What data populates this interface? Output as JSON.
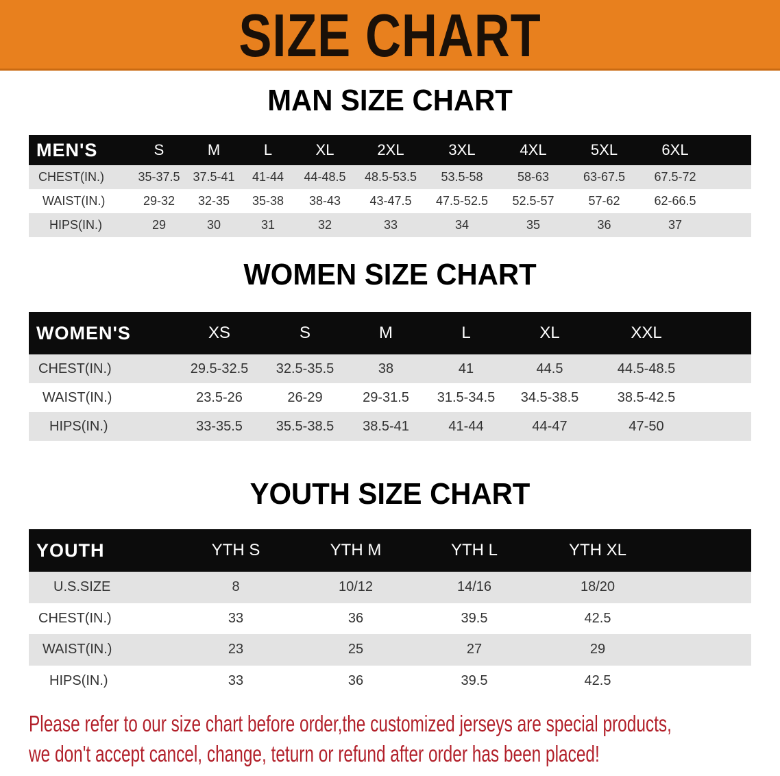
{
  "banner": {
    "title": "SIZE CHART",
    "color": "#e8801e"
  },
  "men": {
    "title": "MAN SIZE CHART",
    "header": [
      "MEN'S",
      "S",
      "M",
      "L",
      "XL",
      "2XL",
      "3XL",
      "4XL",
      "5XL",
      "6XL"
    ],
    "rows": [
      [
        "CHEST(IN.)",
        "35-37.5",
        "37.5-41",
        "41-44",
        "44-48.5",
        "48.5-53.5",
        "53.5-58",
        "58-63",
        "63-67.5",
        "67.5-72"
      ],
      [
        "WAIST(IN.)",
        "29-32",
        "32-35",
        "35-38",
        "38-43",
        "43-47.5",
        "47.5-52.5",
        "52.5-57",
        "57-62",
        "62-66.5"
      ],
      [
        "HIPS(IN.)",
        "29",
        "30",
        "31",
        "32",
        "33",
        "34",
        "35",
        "36",
        "37"
      ]
    ]
  },
  "women": {
    "title": "WOMEN SIZE CHART",
    "header": [
      "WOMEN'S",
      "XS",
      "S",
      "M",
      "L",
      "XL",
      "XXL"
    ],
    "rows": [
      [
        "CHEST(IN.)",
        "29.5-32.5",
        "32.5-35.5",
        "38",
        "41",
        "44.5",
        "44.5-48.5"
      ],
      [
        "WAIST(IN.)",
        "23.5-26",
        "26-29",
        "29-31.5",
        "31.5-34.5",
        "34.5-38.5",
        "38.5-42.5"
      ],
      [
        "HIPS(IN.)",
        "33-35.5",
        "35.5-38.5",
        "38.5-41",
        "41-44",
        "44-47",
        "47-50"
      ]
    ]
  },
  "youth": {
    "title": "YOUTH SIZE CHART",
    "header": [
      "YOUTH",
      "YTH S",
      "YTH M",
      "YTH L",
      "YTH XL"
    ],
    "rows": [
      [
        "U.S.SIZE",
        "8",
        "10/12",
        "14/16",
        "18/20"
      ],
      [
        "CHEST(IN.)",
        "33",
        "36",
        "39.5",
        "42.5"
      ],
      [
        "WAIST(IN.)",
        "23",
        "25",
        "27",
        "29"
      ],
      [
        "HIPS(IN.)",
        "33",
        "36",
        "39.5",
        "42.5"
      ]
    ]
  },
  "notice": {
    "line1": "Please refer to our size chart before order,the customized jerseys are special products,",
    "line2": "we don't accept cancel, change, teturn or refund after order has been placed!",
    "color": "#b2202a"
  }
}
